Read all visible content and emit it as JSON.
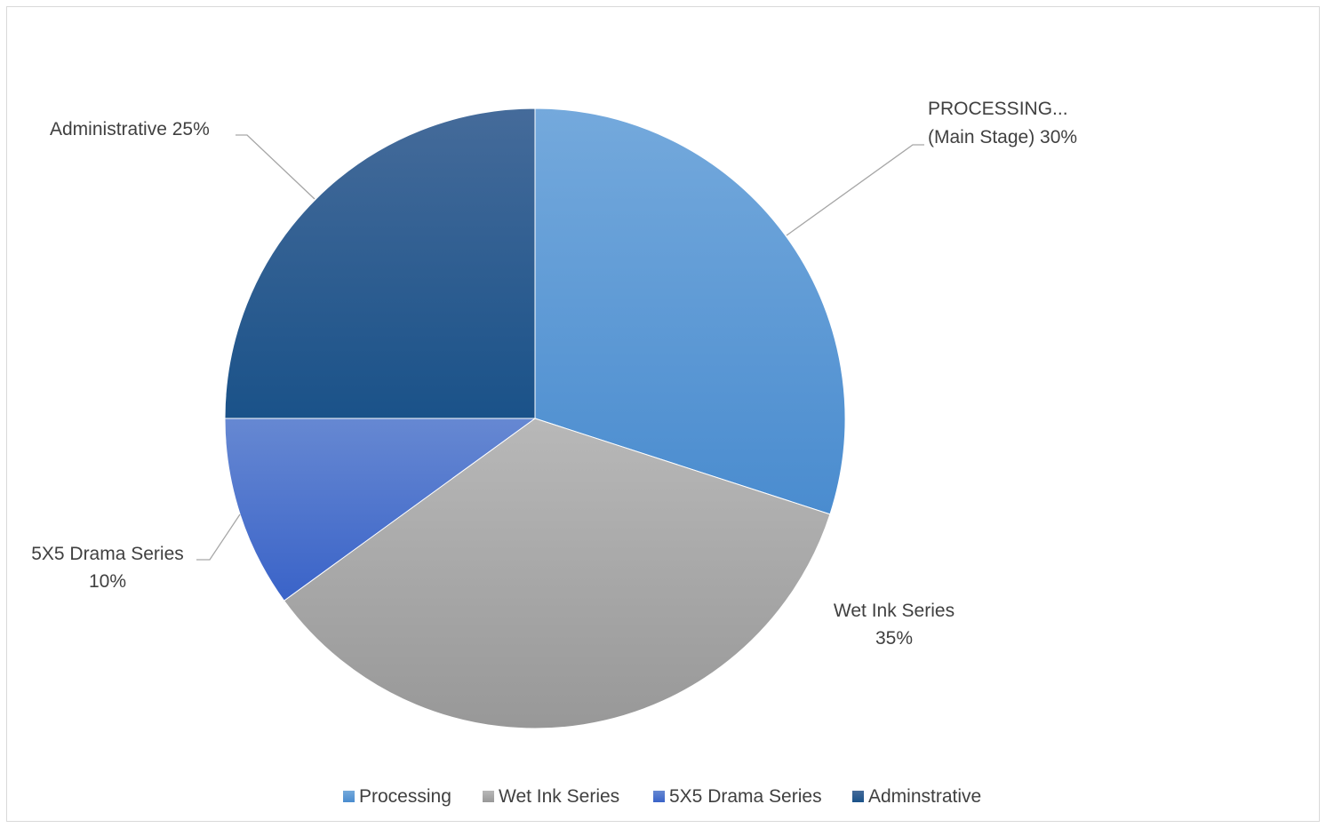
{
  "chart_data": {
    "type": "pie",
    "title": "",
    "slices": [
      {
        "legend": "Processing",
        "label_lines": [
          "PROCESSING...",
          "(Main Stage)"
        ],
        "pct_label": "30%",
        "value": 30,
        "color_light": "#74a9dc",
        "color_dark": "#4a8ccf"
      },
      {
        "legend": "Wet Ink Series",
        "label_lines": [
          "Wet Ink Series"
        ],
        "pct_label": "35%",
        "value": 35,
        "color_light": "#b8b8b8",
        "color_dark": "#989898"
      },
      {
        "legend": "5X5 Drama Series",
        "label_lines": [
          "5X5 Drama Series"
        ],
        "pct_label": "10%",
        "value": 10,
        "color_light": "#6688d2",
        "color_dark": "#3a63c8"
      },
      {
        "legend": "Adminstrative",
        "label_lines": [
          "Administrative"
        ],
        "pct_label": "25%",
        "value": 25,
        "color_light": "#456b9a",
        "color_dark": "#1a5289"
      }
    ],
    "legend_position": "bottom"
  }
}
